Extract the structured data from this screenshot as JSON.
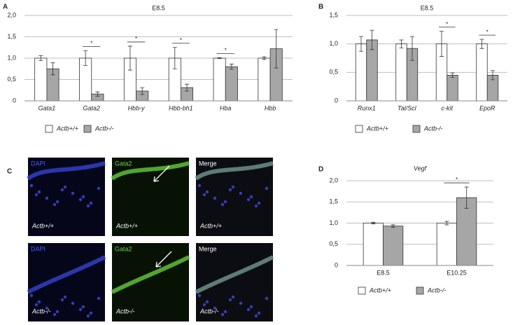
{
  "chart_data": [
    {
      "type": "bar",
      "label": "A",
      "title": "E8.5",
      "categories": [
        "Gata1",
        "Gata2",
        "Hbb-y",
        "Hbb-bh1",
        "Hba",
        "Hbb"
      ],
      "series": [
        {
          "name": "Actb+/+",
          "color": "#ffffff",
          "values": [
            1.0,
            1.0,
            1.0,
            1.0,
            1.0,
            1.0
          ],
          "errors": [
            0.06,
            0.17,
            0.28,
            0.25,
            0.01,
            0.03
          ]
        },
        {
          "name": "Actb-/-",
          "color": "#a6a6a6",
          "values": [
            0.75,
            0.16,
            0.23,
            0.31,
            0.8,
            1.22
          ],
          "errors": [
            0.14,
            0.05,
            0.08,
            0.08,
            0.06,
            0.45
          ]
        }
      ],
      "significance": [
        null,
        "*",
        "*",
        "*",
        "*",
        null
      ],
      "ylim": [
        0,
        2
      ],
      "yticks": [
        0,
        {
          "value": 0.5,
          "label": "0,5"
        },
        {
          "value": 1,
          "label": "1,0"
        },
        {
          "value": 1.5,
          "label": "1,5"
        },
        {
          "value": 2,
          "label": "2,0"
        }
      ],
      "grid": true
    },
    {
      "type": "bar",
      "label": "B",
      "title": "E8.5",
      "categories": [
        "Runx1",
        "Tal/Scl",
        "c-kit",
        "EpoR"
      ],
      "series": [
        {
          "name": "Actb+/+",
          "color": "#ffffff",
          "values": [
            1.0,
            1.0,
            1.0,
            1.0
          ],
          "errors": [
            0.13,
            0.07,
            0.22,
            0.08
          ]
        },
        {
          "name": "Actb-/-",
          "color": "#a6a6a6",
          "values": [
            1.07,
            0.92,
            0.45,
            0.45
          ],
          "errors": [
            0.17,
            0.21,
            0.04,
            0.08
          ]
        }
      ],
      "significance": [
        null,
        null,
        "*",
        "*"
      ],
      "ylim": [
        0,
        1.5
      ],
      "yticks": [
        0,
        {
          "value": 0.5,
          "label": "0,5"
        },
        {
          "value": 1,
          "label": "1,0"
        },
        {
          "value": 1.5,
          "label": "1,5"
        }
      ],
      "grid": true
    },
    {
      "type": "bar",
      "label": "D",
      "title": "Vegf",
      "categories": [
        "E8.5",
        "E10.25"
      ],
      "series": [
        {
          "name": "Actb+/+",
          "color": "#ffffff",
          "values": [
            1.0,
            1.0
          ],
          "errors": [
            0.02,
            0.04
          ]
        },
        {
          "name": "Actb-/-",
          "color": "#a6a6a6",
          "values": [
            0.93,
            1.6
          ],
          "errors": [
            0.03,
            0.25
          ]
        }
      ],
      "significance": [
        null,
        "*"
      ],
      "ylim": [
        0,
        2
      ],
      "yticks": [
        0,
        {
          "value": 0.5,
          "label": "0,5"
        },
        {
          "value": 1,
          "label": "1,0"
        },
        {
          "value": 1.5,
          "label": "1,5"
        },
        {
          "value": 2,
          "label": "2,0"
        }
      ],
      "grid": true
    }
  ],
  "figure_c": {
    "label": "C",
    "panels": [
      {
        "channel": "DAPI",
        "genotype": "Actb+/+"
      },
      {
        "channel": "Gata2",
        "genotype": "Actb+/+"
      },
      {
        "channel": "Merge",
        "genotype": "Actb+/+"
      },
      {
        "channel": "DAPI",
        "genotype": "Actb-/-"
      },
      {
        "channel": "Gata2",
        "genotype": "Actb-/-"
      },
      {
        "channel": "Merge",
        "genotype": "Actb-/-"
      }
    ]
  }
}
